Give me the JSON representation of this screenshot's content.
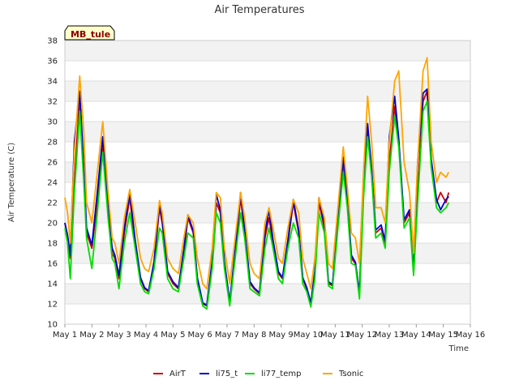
{
  "chart_data": {
    "type": "line",
    "title": "Air Temperatures",
    "xlabel": "Time",
    "ylabel": "Air Temperature (C)",
    "station_label": "MB_tule",
    "x_range": [
      1,
      16
    ],
    "ylim": [
      10,
      38
    ],
    "y_ticks": [
      10,
      12,
      14,
      16,
      18,
      20,
      22,
      24,
      26,
      28,
      30,
      32,
      34,
      36,
      38
    ],
    "x_ticks": [
      {
        "value": 1,
        "label": "May 1"
      },
      {
        "value": 2,
        "label": "May 2"
      },
      {
        "value": 3,
        "label": "May 3"
      },
      {
        "value": 4,
        "label": "May 4"
      },
      {
        "value": 5,
        "label": "May 5"
      },
      {
        "value": 6,
        "label": "May 6"
      },
      {
        "value": 7,
        "label": "May 7"
      },
      {
        "value": 8,
        "label": "May 8"
      },
      {
        "value": 9,
        "label": "May 9"
      },
      {
        "value": 10,
        "label": "May 10"
      },
      {
        "value": 11,
        "label": "May 11"
      },
      {
        "value": 12,
        "label": "May 12"
      },
      {
        "value": 13,
        "label": "May 13"
      },
      {
        "value": 14,
        "label": "May 14"
      },
      {
        "value": 15,
        "label": "May 15"
      },
      {
        "value": 16,
        "label": "May 16"
      }
    ],
    "grid": "horizontal-bands",
    "legend_position": "bottom-center",
    "series": [
      {
        "name": "AirT",
        "color": "#cc0000",
        "x": [
          1.0,
          1.1,
          1.2,
          1.35,
          1.55,
          1.7,
          1.8,
          2.0,
          2.2,
          2.4,
          2.6,
          2.75,
          2.85,
          3.0,
          3.2,
          3.4,
          3.6,
          3.8,
          3.95,
          4.1,
          4.3,
          4.5,
          4.6,
          4.8,
          5.0,
          5.2,
          5.4,
          5.55,
          5.75,
          5.9,
          6.1,
          6.25,
          6.45,
          6.6,
          6.75,
          6.9,
          7.1,
          7.3,
          7.5,
          7.65,
          7.85,
          8.0,
          8.2,
          8.4,
          8.55,
          8.7,
          8.9,
          9.05,
          9.25,
          9.45,
          9.65,
          9.8,
          9.95,
          10.1,
          10.25,
          10.4,
          10.6,
          10.75,
          10.9,
          11.1,
          11.3,
          11.45,
          11.6,
          11.75,
          11.9,
          12.05,
          12.2,
          12.35,
          12.5,
          12.7,
          12.85,
          13.0,
          13.2,
          13.35,
          13.55,
          13.75,
          13.9,
          14.05,
          14.25,
          14.4,
          14.55,
          14.75,
          14.9,
          15.1,
          15.2
        ],
        "values": [
          20,
          18.5,
          16.5,
          24,
          32.5,
          25,
          19,
          17.5,
          22,
          28,
          21,
          17,
          16.5,
          14.5,
          19,
          22.5,
          18,
          14.5,
          13.5,
          13.2,
          16,
          21.5,
          20,
          15,
          14,
          13.5,
          17,
          20.5,
          19,
          14.5,
          12,
          11.8,
          16,
          22,
          21,
          16,
          12,
          17,
          22.5,
          19,
          14,
          13.5,
          13,
          18.5,
          20.5,
          18,
          15,
          14.5,
          18,
          22,
          19,
          14.5,
          13.5,
          12,
          15,
          22,
          19.5,
          14,
          13.8,
          20,
          26,
          22,
          16.5,
          16,
          13,
          23,
          29.5,
          25,
          19,
          19.5,
          18,
          26,
          31.5,
          28,
          20,
          21,
          15,
          23,
          32,
          33,
          26,
          22,
          23,
          22,
          23
        ]
      },
      {
        "name": "li75_t",
        "color": "#0000cc",
        "x": [
          1.0,
          1.1,
          1.2,
          1.35,
          1.55,
          1.7,
          1.8,
          2.0,
          2.2,
          2.4,
          2.6,
          2.75,
          2.85,
          3.0,
          3.2,
          3.4,
          3.6,
          3.8,
          3.95,
          4.1,
          4.3,
          4.5,
          4.6,
          4.8,
          5.0,
          5.2,
          5.4,
          5.55,
          5.75,
          5.9,
          6.1,
          6.25,
          6.45,
          6.6,
          6.75,
          6.9,
          7.1,
          7.3,
          7.5,
          7.65,
          7.85,
          8.0,
          8.2,
          8.4,
          8.55,
          8.7,
          8.9,
          9.05,
          9.25,
          9.45,
          9.65,
          9.8,
          9.95,
          10.1,
          10.25,
          10.4,
          10.6,
          10.75,
          10.9,
          11.1,
          11.3,
          11.45,
          11.6,
          11.75,
          11.9,
          12.05,
          12.2,
          12.35,
          12.5,
          12.7,
          12.85,
          13.0,
          13.2,
          13.35,
          13.55,
          13.75,
          13.9,
          14.05,
          14.25,
          14.4,
          14.55,
          14.75,
          14.9,
          15.1,
          15.2
        ],
        "values": [
          20,
          18.8,
          16.8,
          28,
          33,
          25.5,
          19.5,
          17.8,
          23,
          28.5,
          21.5,
          17.5,
          16.8,
          14.8,
          19.5,
          23,
          18.3,
          14.6,
          13.6,
          13.3,
          16.2,
          22,
          20.3,
          15.2,
          14.2,
          13.6,
          17.4,
          20.8,
          19.2,
          14.6,
          12.1,
          11.9,
          16.3,
          22.8,
          21.3,
          16.2,
          12.2,
          17.3,
          23,
          19.3,
          14.2,
          13.6,
          13.1,
          19,
          21.3,
          18.3,
          15.2,
          14.6,
          18.3,
          22.3,
          19.3,
          14.6,
          13.6,
          12.1,
          15.3,
          22.5,
          19.8,
          14.2,
          13.9,
          20.4,
          26.5,
          22.3,
          16.8,
          16.1,
          13.1,
          24,
          29.8,
          25.3,
          19.3,
          19.8,
          18.2,
          28.5,
          32.5,
          28.3,
          20.3,
          21.3,
          15.2,
          26,
          32.8,
          33.2,
          26.3,
          22.3,
          21.3,
          22.3,
          22.6
        ]
      },
      {
        "name": "li77_temp",
        "color": "#00dd00",
        "x": [
          1.0,
          1.1,
          1.2,
          1.35,
          1.55,
          1.7,
          1.8,
          2.0,
          2.2,
          2.4,
          2.6,
          2.75,
          2.85,
          3.0,
          3.2,
          3.4,
          3.6,
          3.8,
          3.95,
          4.1,
          4.3,
          4.5,
          4.6,
          4.8,
          5.0,
          5.2,
          5.4,
          5.55,
          5.75,
          5.9,
          6.1,
          6.25,
          6.45,
          6.6,
          6.75,
          6.9,
          7.1,
          7.3,
          7.5,
          7.65,
          7.85,
          8.0,
          8.2,
          8.4,
          8.55,
          8.7,
          8.9,
          9.05,
          9.25,
          9.45,
          9.65,
          9.8,
          9.95,
          10.1,
          10.25,
          10.4,
          10.6,
          10.75,
          10.9,
          11.1,
          11.3,
          11.45,
          11.6,
          11.75,
          11.9,
          12.05,
          12.2,
          12.35,
          12.5,
          12.7,
          12.85,
          13.0,
          13.2,
          13.35,
          13.55,
          13.75,
          13.9,
          14.05,
          14.25,
          14.4,
          14.55,
          14.75,
          14.9,
          15.1,
          15.2
        ],
        "values": [
          19.5,
          18,
          14.5,
          23,
          31,
          24,
          18.5,
          15.5,
          21,
          27,
          20.5,
          16.5,
          16,
          13.5,
          18,
          21,
          17.5,
          14,
          13.2,
          13,
          15.5,
          19.5,
          19,
          14.5,
          13.5,
          13.2,
          16.5,
          19,
          18.5,
          14,
          11.8,
          11.5,
          15.5,
          21,
          20,
          15.5,
          11.8,
          16.5,
          21,
          18.5,
          13.5,
          13.2,
          12.8,
          17.5,
          19.5,
          17.5,
          14.5,
          14,
          17.5,
          20,
          18.5,
          14,
          13.2,
          11.7,
          14.5,
          21,
          19,
          13.8,
          13.5,
          19.5,
          25,
          21.5,
          16,
          15.8,
          12.5,
          22.5,
          28.5,
          24.5,
          18.5,
          19,
          17.5,
          25,
          30.5,
          27.5,
          19.5,
          20.5,
          14.8,
          22,
          31,
          32,
          25.5,
          21.5,
          21,
          21.5,
          22
        ]
      },
      {
        "name": "Tsonic",
        "color": "#ffa500",
        "x": [
          1.0,
          1.1,
          1.2,
          1.35,
          1.55,
          1.7,
          1.8,
          2.0,
          2.2,
          2.4,
          2.6,
          2.75,
          2.85,
          3.0,
          3.2,
          3.4,
          3.6,
          3.8,
          3.95,
          4.1,
          4.3,
          4.5,
          4.6,
          4.8,
          5.0,
          5.2,
          5.4,
          5.55,
          5.75,
          5.9,
          6.1,
          6.25,
          6.45,
          6.6,
          6.75,
          6.9,
          7.1,
          7.3,
          7.5,
          7.65,
          7.85,
          8.0,
          8.2,
          8.4,
          8.55,
          8.7,
          8.9,
          9.05,
          9.25,
          9.45,
          9.65,
          9.8,
          9.95,
          10.1,
          10.25,
          10.4,
          10.6,
          10.75,
          10.9,
          11.1,
          11.3,
          11.45,
          11.6,
          11.75,
          11.9,
          12.05,
          12.2,
          12.35,
          12.5,
          12.7,
          12.85,
          13.0,
          13.2,
          13.35,
          13.55,
          13.75,
          13.9,
          14.05,
          14.25,
          14.4,
          14.55,
          14.75,
          14.9,
          15.1,
          15.2
        ],
        "values": [
          22.5,
          21,
          18,
          27,
          34.5,
          29,
          22,
          20,
          25,
          30,
          23,
          18.5,
          18,
          16,
          20.5,
          23.3,
          20,
          16.5,
          15.5,
          15.2,
          17.5,
          22.2,
          21,
          16.5,
          15.5,
          15,
          18.5,
          20.8,
          20,
          16.5,
          14,
          13.5,
          17.5,
          23,
          22.5,
          17.5,
          14,
          18.5,
          23,
          20.5,
          16,
          15,
          14.5,
          20,
          21.5,
          19.5,
          16.5,
          16,
          19.5,
          22.3,
          21,
          16.5,
          15,
          13.5,
          16.5,
          22.5,
          20.5,
          16,
          15.5,
          21.5,
          27.5,
          23.5,
          19,
          18.5,
          16,
          25,
          32.5,
          28,
          21.5,
          21.5,
          20,
          28,
          34,
          35,
          26,
          23,
          17,
          26,
          35,
          36.3,
          28,
          24,
          25,
          24.5,
          25
        ]
      }
    ]
  }
}
